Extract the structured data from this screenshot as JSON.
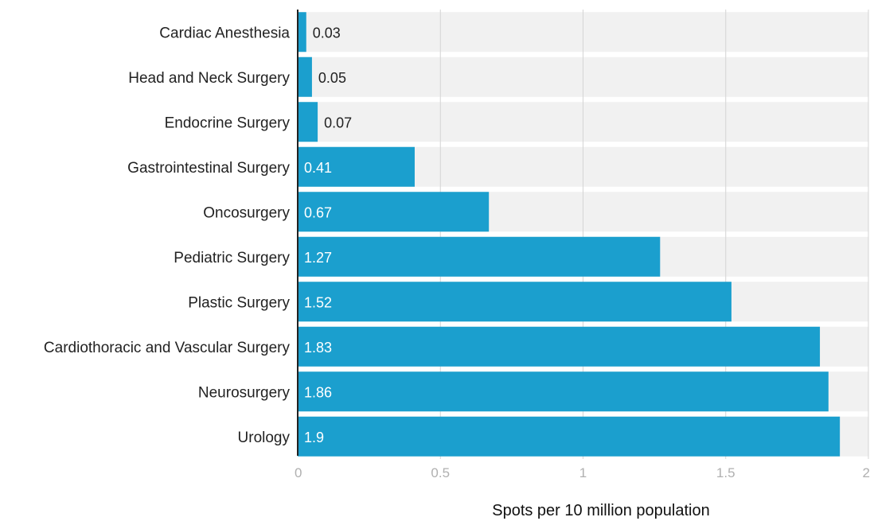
{
  "chart_data": {
    "type": "bar",
    "orientation": "horizontal",
    "categories": [
      "Cardiac Anesthesia",
      "Head and Neck Surgery",
      "Endocrine Surgery",
      "Gastrointestinal Surgery",
      "Oncosurgery",
      "Pediatric Surgery",
      "Plastic Surgery",
      "Cardiothoracic and Vascular Surgery",
      "Neurosurgery",
      "Urology"
    ],
    "values": [
      0.03,
      0.05,
      0.07,
      0.41,
      0.67,
      1.27,
      1.52,
      1.83,
      1.86,
      1.9
    ],
    "value_labels": [
      "0.03",
      "0.05",
      "0.07",
      "0.41",
      "0.67",
      "1.27",
      "1.52",
      "1.83",
      "1.86",
      "1.9"
    ],
    "xlabel": "Spots per 10 million population",
    "xlim": [
      0,
      2
    ],
    "xticks": [
      0,
      0.5,
      1,
      1.5,
      2
    ],
    "xtick_labels": [
      "0",
      "0.5",
      "1",
      "1.5",
      "2"
    ],
    "grid": true,
    "legend": "none",
    "bar_color": "#1b9fce",
    "band_color": "#f1f1f1"
  }
}
